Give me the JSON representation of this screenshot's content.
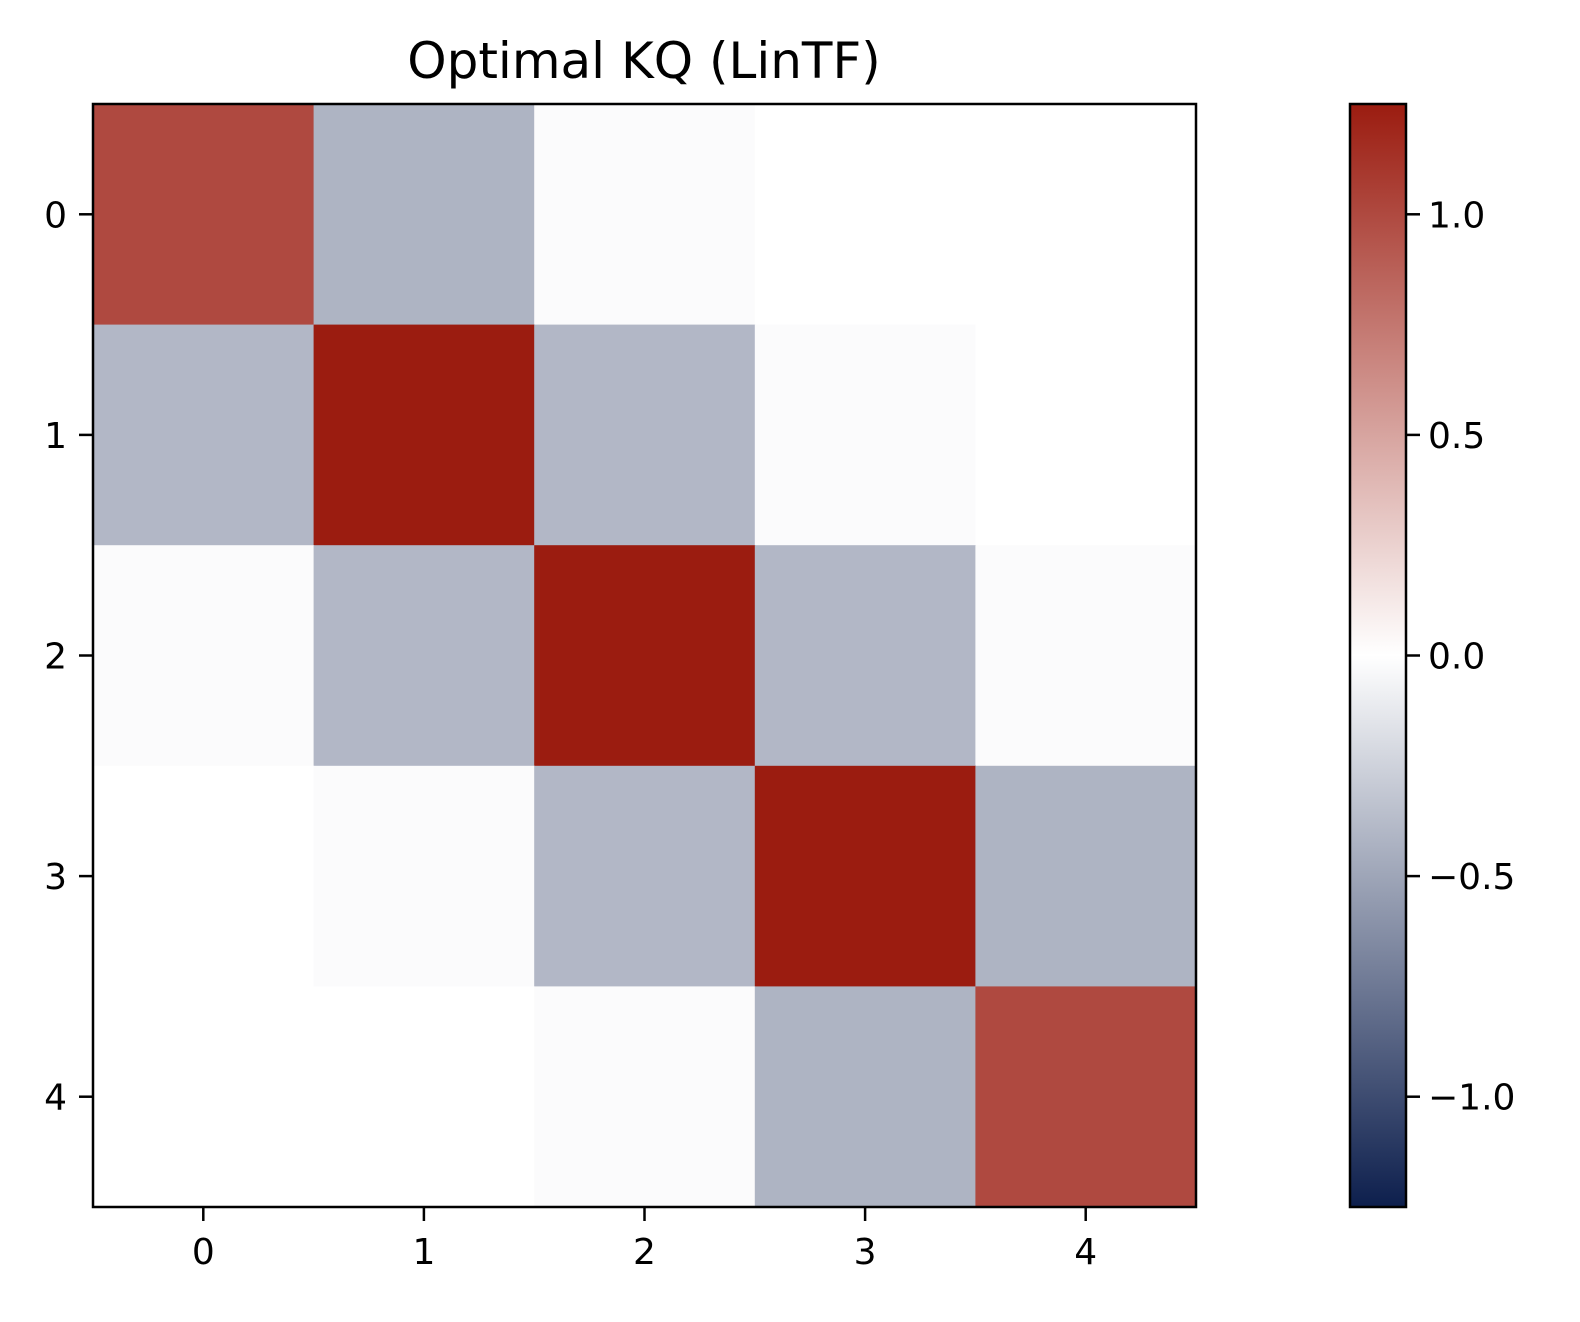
{
  "chart_data": {
    "type": "heatmap",
    "title": "Optimal KQ (LinTF)",
    "xlabel": "",
    "ylabel": "",
    "x_categories": [
      "0",
      "1",
      "2",
      "3",
      "4"
    ],
    "y_categories": [
      "0",
      "1",
      "2",
      "3",
      "4"
    ],
    "values": [
      [
        1.0,
        -0.42,
        -0.02,
        0.0,
        0.0
      ],
      [
        -0.4,
        1.25,
        -0.4,
        -0.02,
        0.0
      ],
      [
        -0.02,
        -0.4,
        1.25,
        -0.4,
        -0.02
      ],
      [
        0.0,
        -0.02,
        -0.4,
        1.25,
        -0.42
      ],
      [
        0.0,
        0.0,
        -0.02,
        -0.42,
        1.0
      ]
    ],
    "colorbar": {
      "vmin": -1.25,
      "vmax": 1.25,
      "ticks": [
        1.0,
        0.5,
        0.0,
        -0.5,
        -1.0
      ],
      "tick_labels": [
        "1.0",
        "0.5",
        "0.0",
        "−0.5",
        "−1.0"
      ],
      "colormap": [
        "#0d1f4d",
        "#ffffff",
        "#9b1c10"
      ]
    },
    "grid": false
  }
}
